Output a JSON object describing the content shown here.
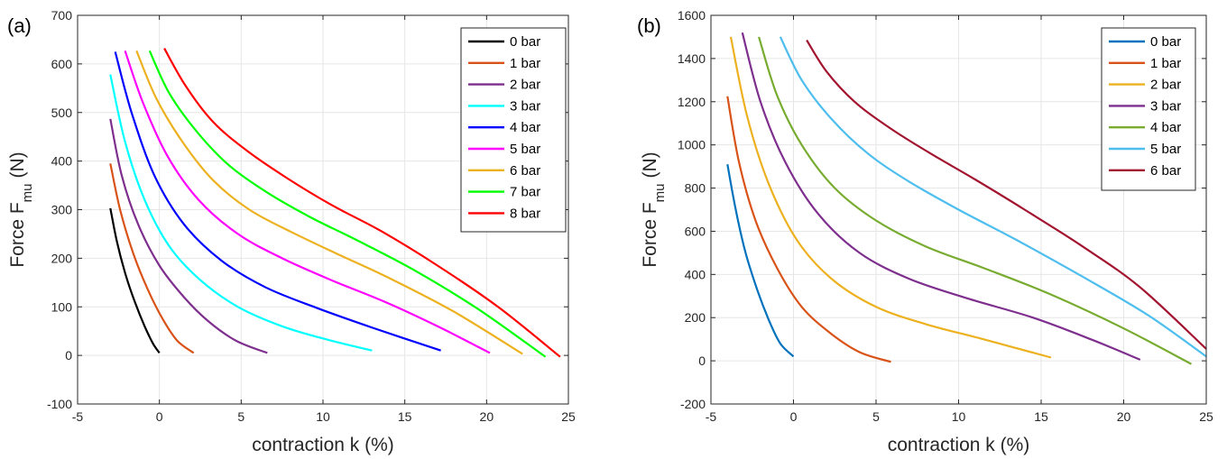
{
  "chart_data": [
    {
      "type": "line",
      "panel_label": "(a)",
      "xlabel": "contraction k (%)",
      "ylabel": "Force F",
      "ylabel_sub": "mu",
      "ylabel_unit": "(N)",
      "xlim": [
        -5,
        25
      ],
      "ylim": [
        -100,
        700
      ],
      "xticks": [
        -5,
        0,
        5,
        10,
        15,
        20,
        25
      ],
      "yticks": [
        -100,
        0,
        100,
        200,
        300,
        400,
        500,
        600,
        700
      ],
      "grid": true,
      "legend_position": "top-right",
      "series": [
        {
          "name": "0 bar",
          "color": "#000000",
          "x": [
            -3.0,
            -2.6,
            -2.1,
            -1.5,
            -0.9,
            -0.4,
            0.0
          ],
          "y": [
            303,
            235,
            170,
            110,
            60,
            25,
            5
          ]
        },
        {
          "name": "1 bar",
          "color": "#D95319",
          "x": [
            -3.0,
            -2.4,
            -1.6,
            -0.7,
            0.2,
            1.1,
            2.1
          ],
          "y": [
            395,
            300,
            210,
            135,
            75,
            30,
            5
          ]
        },
        {
          "name": "2 bar",
          "color": "#7E2F8E",
          "x": [
            -3.0,
            -2.3,
            -1.3,
            0.0,
            1.5,
            3.0,
            4.7,
            6.6
          ],
          "y": [
            487,
            370,
            270,
            185,
            120,
            70,
            30,
            5
          ]
        },
        {
          "name": "3 bar",
          "color": "#00FFFF",
          "x": [
            -3.0,
            -2.1,
            -0.9,
            0.6,
            2.5,
            4.8,
            7.5,
            10.2,
            13.0
          ],
          "y": [
            578,
            440,
            320,
            225,
            155,
            100,
            60,
            33,
            10
          ]
        },
        {
          "name": "4 bar",
          "color": "#0000FF",
          "x": [
            -2.7,
            -1.7,
            -0.3,
            1.5,
            3.8,
            6.5,
            9.6,
            13.2,
            17.2
          ],
          "y": [
            625,
            500,
            370,
            270,
            195,
            140,
            98,
            55,
            10
          ]
        },
        {
          "name": "5 bar",
          "color": "#FF00FF",
          "x": [
            -2.1,
            -1.0,
            0.5,
            2.4,
            4.8,
            7.5,
            10.5,
            13.8,
            17.0,
            20.2
          ],
          "y": [
            627,
            520,
            410,
            320,
            250,
            200,
            155,
            110,
            60,
            5
          ]
        },
        {
          "name": "6 bar",
          "color": "#EDB120",
          "x": [
            -1.4,
            -0.2,
            1.4,
            3.3,
            5.5,
            8.0,
            10.8,
            14.0,
            18.0,
            22.2
          ],
          "y": [
            627,
            530,
            440,
            360,
            300,
            255,
            210,
            160,
            90,
            3
          ]
        },
        {
          "name": "7 bar",
          "color": "#00FF00",
          "x": [
            -0.6,
            0.6,
            2.3,
            4.3,
            6.6,
            9.2,
            12.2,
            15.6,
            19.5,
            23.6
          ],
          "y": [
            627,
            540,
            460,
            390,
            335,
            285,
            235,
            175,
            95,
            -3
          ]
        },
        {
          "name": "8 bar",
          "color": "#FF0000",
          "x": [
            0.3,
            1.6,
            3.3,
            5.4,
            7.8,
            10.5,
            13.6,
            17.0,
            20.7,
            24.5
          ],
          "y": [
            632,
            555,
            480,
            420,
            365,
            310,
            255,
            185,
            100,
            -3
          ]
        }
      ]
    },
    {
      "type": "line",
      "panel_label": "(b)",
      "xlabel": "contraction k (%)",
      "ylabel": "Force F",
      "ylabel_sub": "mu",
      "ylabel_unit": "(N)",
      "xlim": [
        -5,
        25
      ],
      "ylim": [
        -200,
        1600
      ],
      "xticks": [
        -5,
        0,
        5,
        10,
        15,
        20,
        25
      ],
      "yticks": [
        -200,
        0,
        200,
        400,
        600,
        800,
        1000,
        1200,
        1400,
        1600
      ],
      "grid": true,
      "legend_position": "top-right",
      "series": [
        {
          "name": "0 bar",
          "color": "#0072BD",
          "x": [
            -4.0,
            -3.5,
            -2.9,
            -2.2,
            -1.5,
            -0.8,
            0.0
          ],
          "y": [
            910,
            700,
            500,
            330,
            190,
            80,
            20
          ]
        },
        {
          "name": "1 bar",
          "color": "#D95319",
          "x": [
            -4.0,
            -3.3,
            -2.3,
            -1.0,
            0.5,
            2.2,
            4.0,
            5.9
          ],
          "y": [
            1225,
            920,
            650,
            430,
            250,
            130,
            40,
            -5
          ]
        },
        {
          "name": "2 bar",
          "color": "#EDB120",
          "x": [
            -3.8,
            -2.8,
            -1.5,
            0.2,
            2.3,
            5.0,
            8.0,
            11.5,
            15.6
          ],
          "y": [
            1500,
            1130,
            820,
            560,
            380,
            250,
            170,
            100,
            15
          ]
        },
        {
          "name": "3 bar",
          "color": "#7E2F8E",
          "x": [
            -3.1,
            -2.0,
            -0.5,
            1.5,
            4.0,
            7.0,
            10.5,
            14.5,
            18.0,
            21.0
          ],
          "y": [
            1520,
            1200,
            920,
            680,
            500,
            380,
            290,
            200,
            100,
            5
          ]
        },
        {
          "name": "4 bar",
          "color": "#77AC30",
          "x": [
            -2.1,
            -1.0,
            0.5,
            2.5,
            5.0,
            8.0,
            11.5,
            15.5,
            20.0,
            24.1
          ],
          "y": [
            1500,
            1230,
            1000,
            800,
            650,
            530,
            430,
            310,
            150,
            -15
          ]
        },
        {
          "name": "5 bar",
          "color": "#4DBEEE",
          "x": [
            -0.8,
            0.5,
            2.3,
            4.5,
            7.0,
            10.0,
            13.5,
            17.5,
            21.5,
            25.0
          ],
          "y": [
            1500,
            1300,
            1120,
            960,
            830,
            700,
            560,
            390,
            210,
            20
          ]
        },
        {
          "name": "6 bar",
          "color": "#A2142F",
          "x": [
            0.8,
            2.0,
            3.7,
            5.8,
            8.3,
            11.0,
            14.0,
            17.5,
            21.0,
            25.0
          ],
          "y": [
            1485,
            1340,
            1200,
            1080,
            960,
            840,
            700,
            530,
            340,
            55
          ]
        }
      ]
    }
  ]
}
